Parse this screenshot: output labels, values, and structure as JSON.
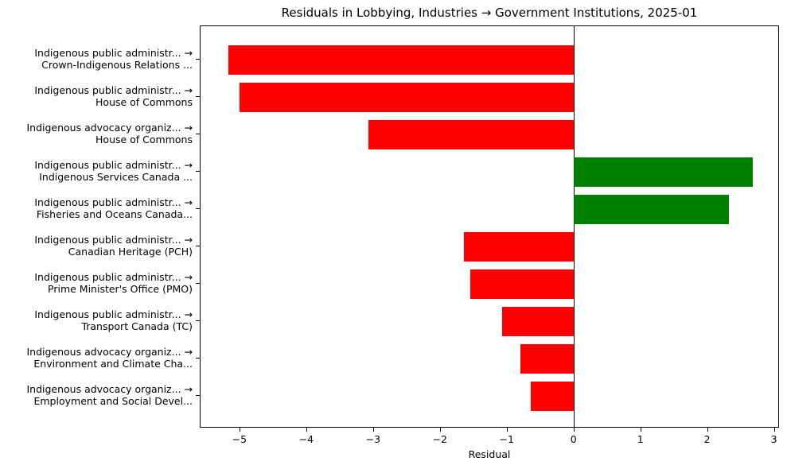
{
  "chart_data": {
    "type": "bar",
    "orientation": "horizontal",
    "title": "Residuals in Lobbying, Industries → Government Institutions, 2025-01",
    "xlabel": "Residual",
    "ylabel": "",
    "xlim": [
      -5.6,
      3.07
    ],
    "xticks": [
      -5,
      -4,
      -3,
      -2,
      -1,
      0,
      1,
      2,
      3
    ],
    "xtick_labels": [
      "−5",
      "−4",
      "−3",
      "−2",
      "−1",
      "0",
      "1",
      "2",
      "3"
    ],
    "grid": false,
    "legend": null,
    "colors": {
      "negative": "#ff0000",
      "positive": "#008000"
    },
    "categories": [
      [
        "Indigenous public administr... →",
        "Crown-Indigenous Relations ..."
      ],
      [
        "Indigenous public administr... →",
        "House of Commons"
      ],
      [
        "Indigenous advocacy organiz... →",
        "House of Commons"
      ],
      [
        "Indigenous public administr... →",
        "Indigenous Services Canada ..."
      ],
      [
        "Indigenous public administr... →",
        "Fisheries and Oceans Canada..."
      ],
      [
        "Indigenous public administr... →",
        "Canadian Heritage (PCH)"
      ],
      [
        "Indigenous public administr... →",
        "Prime Minister's Office (PMO)"
      ],
      [
        "Indigenous public administr... →",
        "Transport Canada (TC)"
      ],
      [
        "Indigenous advocacy organiz... →",
        "Environment and Climate Cha..."
      ],
      [
        "Indigenous advocacy organiz... →",
        "Employment and Social Devel..."
      ]
    ],
    "values": [
      -5.17,
      -5.01,
      -3.07,
      2.68,
      2.32,
      -1.65,
      -1.55,
      -1.08,
      -0.8,
      -0.65
    ]
  }
}
